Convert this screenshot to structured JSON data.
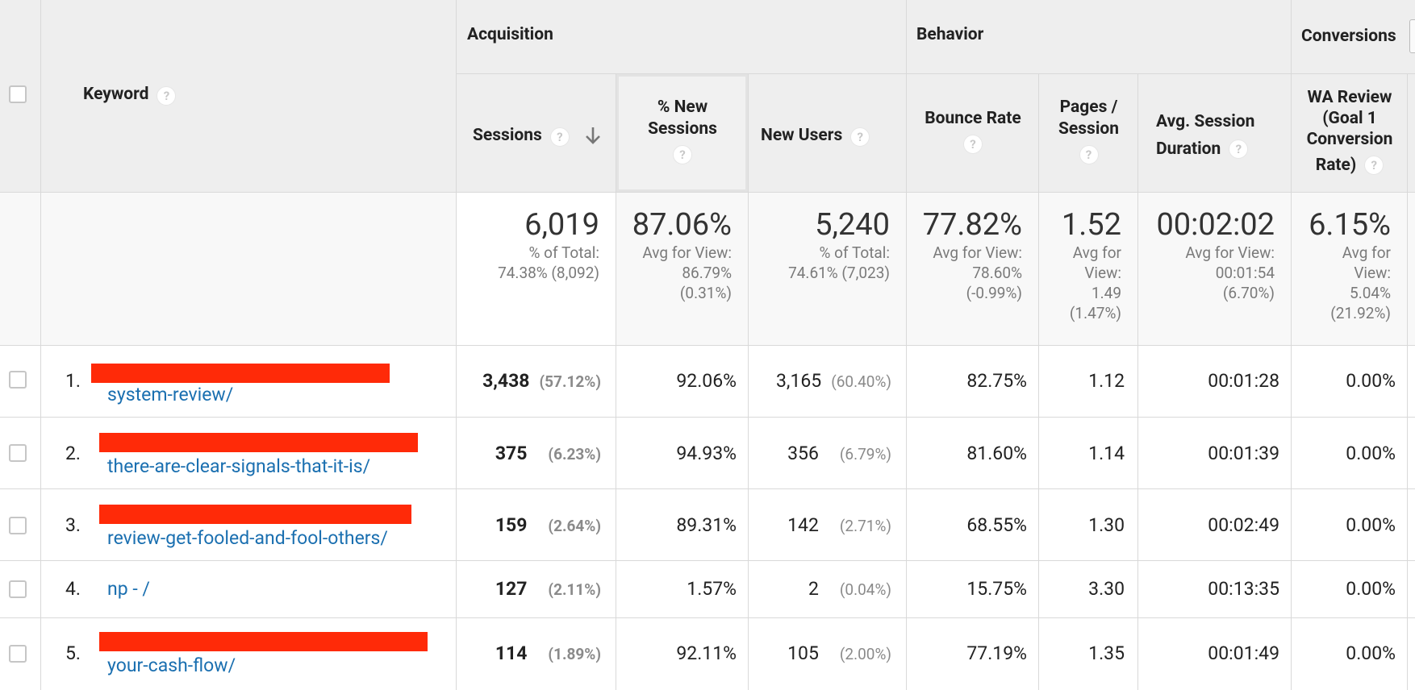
{
  "groups": {
    "acquisition": "Acquisition",
    "behavior": "Behavior",
    "conversions": "Conversions"
  },
  "columns": {
    "keyword": "Keyword",
    "sessions": "Sessions",
    "pct_new_sessions_1": "% New",
    "pct_new_sessions_2": "Sessions",
    "new_users": "New Users",
    "bounce_rate": "Bounce Rate",
    "pages_session_1": "Pages /",
    "pages_session_2": "Session",
    "avg_session_1": "Avg. Session",
    "avg_session_2": "Duration",
    "wa_review_1": "WA Review",
    "wa_review_2": "(Goal 1",
    "wa_review_3": "Conversion",
    "wa_review_4": "Rate)",
    "help": "?"
  },
  "totals": {
    "sessions": {
      "value": "6,019",
      "l1": "% of Total:",
      "l2": "74.38% (8,092)"
    },
    "pct_new": {
      "value": "87.06%",
      "l1": "Avg for View:",
      "l2": "86.79%",
      "l3": "(0.31%)"
    },
    "new_users": {
      "value": "5,240",
      "l1": "% of Total:",
      "l2": "74.61% (7,023)"
    },
    "bounce": {
      "value": "77.82%",
      "l1": "Avg for View:",
      "l2": "78.60%",
      "l3": "(-0.99%)"
    },
    "pages": {
      "value": "1.52",
      "l1": "Avg for",
      "l2": "View:",
      "l3": "1.49",
      "l4": "(1.47%)"
    },
    "duration": {
      "value": "00:02:02",
      "l1": "Avg for View:",
      "l2": "00:01:54",
      "l3": "(6.70%)"
    },
    "wa": {
      "value": "6.15%",
      "l1": "Avg for",
      "l2": "View:",
      "l3": "5.04%",
      "l4": "(21.92%)"
    }
  },
  "rows": [
    {
      "index": "1.",
      "keyword": "system-review/",
      "sessions": "3,438",
      "sessions_pct": "(57.12%)",
      "pct_new": "92.06%",
      "new_users": "3,165",
      "new_users_pct": "(60.40%)",
      "bounce": "82.75%",
      "pages": "1.12",
      "duration": "00:01:28",
      "wa": "0.00%"
    },
    {
      "index": "2.",
      "keyword": "there-are-clear-signals-that-it-is/",
      "sessions": "375",
      "sessions_pct": "(6.23%)",
      "pct_new": "94.93%",
      "new_users": "356",
      "new_users_pct": "(6.79%)",
      "bounce": "81.60%",
      "pages": "1.14",
      "duration": "00:01:39",
      "wa": "0.00%"
    },
    {
      "index": "3.",
      "keyword": "review-get-fooled-and-fool-others/",
      "sessions": "159",
      "sessions_pct": "(2.64%)",
      "pct_new": "89.31%",
      "new_users": "142",
      "new_users_pct": "(2.71%)",
      "bounce": "68.55%",
      "pages": "1.30",
      "duration": "00:02:49",
      "wa": "0.00%"
    },
    {
      "index": "4.",
      "keyword": "np - /",
      "sessions": "127",
      "sessions_pct": "(2.11%)",
      "pct_new": "1.57%",
      "new_users": "2",
      "new_users_pct": "(0.04%)",
      "bounce": "15.75%",
      "pages": "3.30",
      "duration": "00:13:35",
      "wa": "0.00%"
    },
    {
      "index": "5.",
      "keyword": "your-cash-flow/",
      "sessions": "114",
      "sessions_pct": "(1.89%)",
      "pct_new": "92.11%",
      "new_users": "105",
      "new_users_pct": "(2.00%)",
      "bounce": "77.19%",
      "pages": "1.35",
      "duration": "00:01:49",
      "wa": "0.00%"
    }
  ],
  "colors": {
    "header_bg": "#eeeeee",
    "link": "#1a6fb0",
    "redaction": "#ff2a08",
    "border": "#d9d9d9"
  },
  "icons": {
    "help": "help-circle-icon",
    "sort": "arrow-down-icon"
  }
}
